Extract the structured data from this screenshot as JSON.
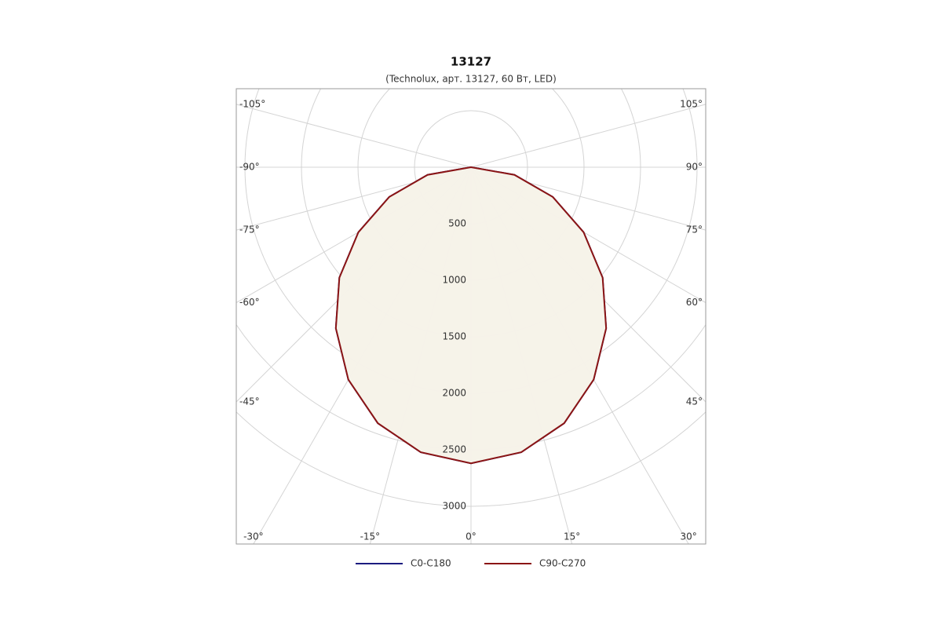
{
  "chart_data": {
    "type": "polar",
    "title": "13127",
    "subtitle": "(Technolux, арт. 13127, 60 Вт, LED)",
    "angles": [
      -90,
      -80,
      -70,
      -60,
      -50,
      -40,
      -30,
      -20,
      -10,
      0,
      10,
      20,
      30,
      40,
      50,
      60,
      70,
      80,
      90
    ],
    "series": [
      {
        "name": "C0-C180",
        "color": "#1c1c80",
        "values": [
          0,
          390,
          770,
          1150,
          1520,
          1860,
          2170,
          2410,
          2560,
          2620,
          2560,
          2410,
          2170,
          1860,
          1520,
          1150,
          770,
          390,
          0
        ]
      },
      {
        "name": "C90-C270",
        "color": "#8b1515",
        "values": [
          0,
          390,
          770,
          1150,
          1520,
          1860,
          2170,
          2410,
          2560,
          2620,
          2560,
          2410,
          2170,
          1860,
          1520,
          1150,
          770,
          390,
          0
        ]
      }
    ],
    "area_color": "#f6f2e9",
    "rlim": [
      0,
      3000
    ],
    "rticks": [
      500,
      1000,
      1500,
      2000,
      2500,
      3000
    ],
    "angle_ticks": [
      {
        "value": -105,
        "label": "-105°"
      },
      {
        "value": -90,
        "label": "-90°"
      },
      {
        "value": -75,
        "label": "-75°"
      },
      {
        "value": -60,
        "label": "-60°"
      },
      {
        "value": -45,
        "label": "-45°"
      },
      {
        "value": -30,
        "label": "-30°"
      },
      {
        "value": -15,
        "label": "-15°"
      },
      {
        "value": 0,
        "label": "0°"
      },
      {
        "value": 15,
        "label": "15°"
      },
      {
        "value": 30,
        "label": "30°"
      },
      {
        "value": 45,
        "label": "45°"
      },
      {
        "value": 60,
        "label": "60°"
      },
      {
        "value": 75,
        "label": "75°"
      },
      {
        "value": 90,
        "label": "90°"
      },
      {
        "value": 105,
        "label": "105°"
      }
    ],
    "grid": true
  }
}
